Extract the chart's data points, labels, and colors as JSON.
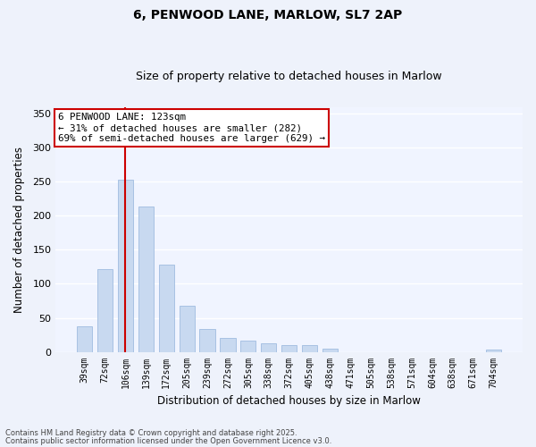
{
  "title": "6, PENWOOD LANE, MARLOW, SL7 2AP",
  "subtitle": "Size of property relative to detached houses in Marlow",
  "xlabel": "Distribution of detached houses by size in Marlow",
  "ylabel": "Number of detached properties",
  "bar_labels": [
    "39sqm",
    "72sqm",
    "106sqm",
    "139sqm",
    "172sqm",
    "205sqm",
    "239sqm",
    "272sqm",
    "305sqm",
    "338sqm",
    "372sqm",
    "405sqm",
    "438sqm",
    "471sqm",
    "505sqm",
    "538sqm",
    "571sqm",
    "604sqm",
    "638sqm",
    "671sqm",
    "704sqm"
  ],
  "bar_values": [
    38,
    122,
    253,
    213,
    128,
    68,
    34,
    20,
    16,
    13,
    10,
    10,
    5,
    0,
    0,
    0,
    0,
    0,
    0,
    0,
    3
  ],
  "bar_color": "#c8d9f0",
  "bar_edge_color": "#a0bce0",
  "vline_index": 2,
  "vline_color": "#cc0000",
  "ylim": [
    0,
    360
  ],
  "yticks": [
    0,
    50,
    100,
    150,
    200,
    250,
    300,
    350
  ],
  "annotation_line1": "6 PENWOOD LANE: 123sqm",
  "annotation_line2": "← 31% of detached houses are smaller (282)",
  "annotation_line3": "69% of semi-detached houses are larger (629) →",
  "annotation_box_color": "white",
  "annotation_box_edge": "#cc0000",
  "footnote1": "Contains HM Land Registry data © Crown copyright and database right 2025.",
  "footnote2": "Contains public sector information licensed under the Open Government Licence v3.0.",
  "bg_color": "#eef2fb",
  "plot_bg_color": "#f0f4ff",
  "grid_color": "#ffffff",
  "title_fontsize": 10,
  "subtitle_fontsize": 9
}
